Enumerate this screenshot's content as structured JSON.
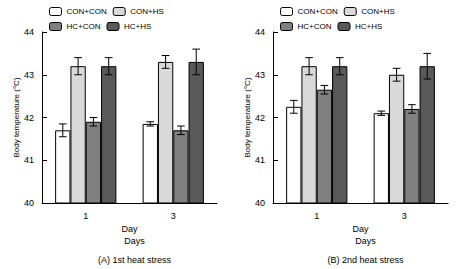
{
  "chart_data": [
    {
      "type": "bar",
      "title": "(A) 1st heat stress",
      "annotations": [
        "Days"
      ],
      "x_label": "Day",
      "y_label": "Body temperature (°C)",
      "categories": [
        "1",
        "3"
      ],
      "series": [
        {
          "name": "CON+CON",
          "color": "#ffffff",
          "values": [
            41.7,
            41.85
          ],
          "errors": [
            0.15,
            0.05
          ]
        },
        {
          "name": "CON+HS",
          "color": "#d9d9d9",
          "values": [
            43.2,
            43.3
          ],
          "errors": [
            0.2,
            0.15
          ]
        },
        {
          "name": "HC+CON",
          "color": "#808080",
          "values": [
            41.9,
            41.7
          ],
          "errors": [
            0.1,
            0.1
          ]
        },
        {
          "name": "HC+HS",
          "color": "#595959",
          "values": [
            43.2,
            43.3
          ],
          "errors": [
            0.2,
            0.3
          ]
        }
      ],
      "ylim": [
        40,
        44
      ],
      "yticks": [
        40,
        41,
        42,
        43,
        44
      ],
      "grid": false,
      "legend": "top-left"
    },
    {
      "type": "bar",
      "title": "(B) 2nd heat stress",
      "annotations": [
        "Days"
      ],
      "x_label": "Day",
      "y_label": "Body temperature (°C)",
      "categories": [
        "1",
        "3"
      ],
      "series": [
        {
          "name": "CON+CON",
          "color": "#ffffff",
          "values": [
            42.25,
            42.1
          ],
          "errors": [
            0.15,
            0.05
          ]
        },
        {
          "name": "CON+HS",
          "color": "#d9d9d9",
          "values": [
            43.2,
            43.0
          ],
          "errors": [
            0.2,
            0.15
          ]
        },
        {
          "name": "HC+CON",
          "color": "#808080",
          "values": [
            42.65,
            42.2
          ],
          "errors": [
            0.1,
            0.1
          ]
        },
        {
          "name": "HC+HS",
          "color": "#595959",
          "values": [
            43.2,
            43.2
          ],
          "errors": [
            0.2,
            0.3
          ]
        }
      ],
      "ylim": [
        40,
        44
      ],
      "yticks": [
        40,
        41,
        42,
        43,
        44
      ],
      "grid": false,
      "legend": "top-left"
    }
  ]
}
